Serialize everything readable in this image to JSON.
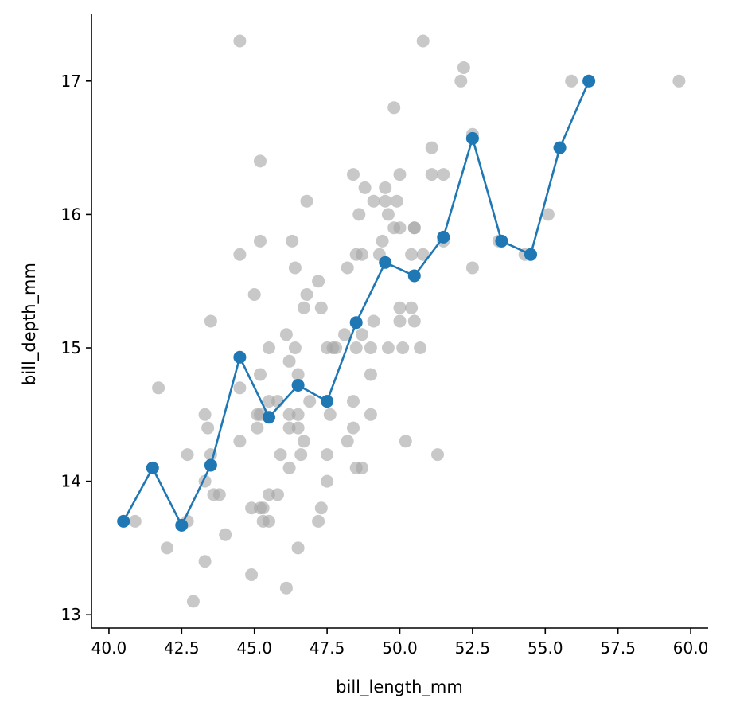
{
  "chart_data": {
    "type": "scatter",
    "xlabel": "bill_length_mm",
    "ylabel": "bill_depth_mm",
    "xlim": [
      39.4,
      60.6
    ],
    "ylim": [
      12.9,
      17.5
    ],
    "x_ticks": [
      40.0,
      42.5,
      45.0,
      47.5,
      50.0,
      52.5,
      55.0,
      57.5,
      60.0
    ],
    "x_tick_labels": [
      "40.0",
      "42.5",
      "45.0",
      "47.5",
      "50.0",
      "52.5",
      "55.0",
      "57.5",
      "60.0"
    ],
    "y_ticks": [
      13,
      14,
      15,
      16,
      17
    ],
    "y_tick_labels": [
      "13",
      "14",
      "15",
      "16",
      "17"
    ],
    "colors": {
      "scatter": "#a6a6a6",
      "line": "#1f77b4"
    },
    "scatter": [
      [
        44.5,
        17.3
      ],
      [
        50.8,
        17.3
      ],
      [
        52.2,
        17.1
      ],
      [
        52.1,
        17.0
      ],
      [
        55.9,
        17.0
      ],
      [
        59.6,
        17.0
      ],
      [
        49.8,
        16.8
      ],
      [
        51.1,
        16.5
      ],
      [
        52.5,
        16.6
      ],
      [
        55.5,
        16.5
      ],
      [
        45.2,
        16.4
      ],
      [
        48.4,
        16.3
      ],
      [
        50.0,
        16.3
      ],
      [
        51.1,
        16.3
      ],
      [
        51.5,
        16.3
      ],
      [
        48.8,
        16.2
      ],
      [
        49.5,
        16.2
      ],
      [
        49.1,
        16.1
      ],
      [
        49.5,
        16.1
      ],
      [
        49.9,
        16.1
      ],
      [
        46.8,
        16.1
      ],
      [
        48.6,
        16.0
      ],
      [
        49.6,
        16.0
      ],
      [
        55.1,
        16.0
      ],
      [
        49.8,
        15.9
      ],
      [
        50.0,
        15.9
      ],
      [
        50.5,
        15.9
      ],
      [
        50.5,
        15.9
      ],
      [
        49.4,
        15.8
      ],
      [
        45.2,
        15.8
      ],
      [
        46.3,
        15.8
      ],
      [
        51.5,
        15.8
      ],
      [
        53.4,
        15.8
      ],
      [
        53.5,
        15.8
      ],
      [
        44.5,
        15.7
      ],
      [
        48.5,
        15.7
      ],
      [
        48.7,
        15.7
      ],
      [
        49.3,
        15.7
      ],
      [
        50.4,
        15.7
      ],
      [
        50.8,
        15.7
      ],
      [
        54.3,
        15.7
      ],
      [
        54.5,
        15.7
      ],
      [
        46.4,
        15.6
      ],
      [
        48.2,
        15.6
      ],
      [
        52.5,
        15.6
      ],
      [
        47.2,
        15.5
      ],
      [
        45.0,
        15.4
      ],
      [
        46.8,
        15.4
      ],
      [
        46.7,
        15.3
      ],
      [
        47.3,
        15.3
      ],
      [
        50.0,
        15.3
      ],
      [
        50.4,
        15.3
      ],
      [
        43.5,
        15.2
      ],
      [
        49.1,
        15.2
      ],
      [
        50.0,
        15.2
      ],
      [
        50.5,
        15.2
      ],
      [
        46.1,
        15.1
      ],
      [
        48.1,
        15.1
      ],
      [
        48.7,
        15.1
      ],
      [
        45.5,
        15.0
      ],
      [
        46.4,
        15.0
      ],
      [
        47.5,
        15.0
      ],
      [
        47.7,
        15.0
      ],
      [
        47.8,
        15.0
      ],
      [
        48.5,
        15.0
      ],
      [
        49.0,
        15.0
      ],
      [
        49.6,
        15.0
      ],
      [
        50.1,
        15.0
      ],
      [
        50.7,
        15.0
      ],
      [
        46.2,
        14.9
      ],
      [
        45.2,
        14.8
      ],
      [
        46.5,
        14.8
      ],
      [
        49.0,
        14.8
      ],
      [
        44.5,
        14.7
      ],
      [
        41.7,
        14.7
      ],
      [
        46.9,
        14.6
      ],
      [
        47.5,
        14.6
      ],
      [
        48.4,
        14.6
      ],
      [
        45.5,
        14.6
      ],
      [
        45.8,
        14.6
      ],
      [
        45.1,
        14.5
      ],
      [
        45.2,
        14.5
      ],
      [
        46.2,
        14.5
      ],
      [
        46.5,
        14.5
      ],
      [
        47.6,
        14.5
      ],
      [
        49.0,
        14.5
      ],
      [
        43.3,
        14.5
      ],
      [
        45.1,
        14.4
      ],
      [
        46.2,
        14.4
      ],
      [
        46.5,
        14.4
      ],
      [
        48.4,
        14.4
      ],
      [
        43.4,
        14.4
      ],
      [
        44.5,
        14.3
      ],
      [
        46.7,
        14.3
      ],
      [
        48.2,
        14.3
      ],
      [
        50.2,
        14.3
      ],
      [
        42.7,
        14.2
      ],
      [
        43.5,
        14.2
      ],
      [
        45.9,
        14.2
      ],
      [
        46.6,
        14.2
      ],
      [
        47.5,
        14.2
      ],
      [
        51.3,
        14.2
      ],
      [
        46.2,
        14.1
      ],
      [
        48.5,
        14.1
      ],
      [
        48.7,
        14.1
      ],
      [
        43.3,
        14.0
      ],
      [
        47.5,
        14.0
      ],
      [
        43.6,
        13.9
      ],
      [
        43.8,
        13.9
      ],
      [
        45.5,
        13.9
      ],
      [
        45.8,
        13.9
      ],
      [
        44.9,
        13.8
      ],
      [
        45.2,
        13.8
      ],
      [
        45.3,
        13.8
      ],
      [
        47.3,
        13.8
      ],
      [
        40.9,
        13.7
      ],
      [
        42.7,
        13.7
      ],
      [
        45.3,
        13.7
      ],
      [
        45.5,
        13.7
      ],
      [
        47.2,
        13.7
      ],
      [
        44.0,
        13.6
      ],
      [
        42.0,
        13.5
      ],
      [
        46.5,
        13.5
      ],
      [
        43.3,
        13.4
      ],
      [
        44.9,
        13.3
      ],
      [
        46.1,
        13.2
      ],
      [
        42.9,
        13.1
      ]
    ],
    "series": [
      {
        "x": [
          40.5,
          41.5,
          42.5,
          43.5,
          44.5,
          45.5,
          46.5,
          47.5,
          48.5,
          49.5,
          50.5,
          51.5,
          52.5,
          53.5,
          54.5,
          55.5,
          56.5
        ],
        "y": [
          13.7,
          14.1,
          13.67,
          14.12,
          14.93,
          14.48,
          14.72,
          14.6,
          15.19,
          15.64,
          15.54,
          15.83,
          16.57,
          15.8,
          15.7,
          16.5,
          17.0
        ]
      }
    ]
  }
}
